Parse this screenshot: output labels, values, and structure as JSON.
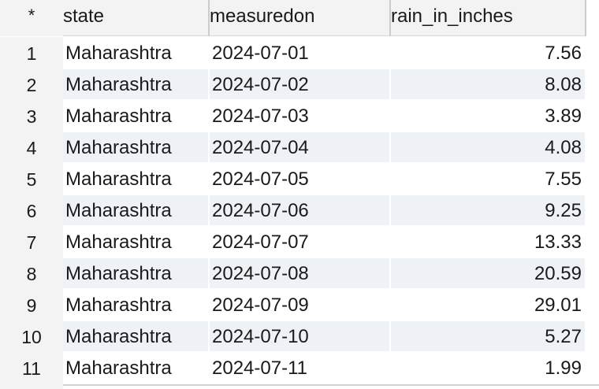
{
  "table": {
    "corner_label": "*",
    "columns": [
      "state",
      "measuredon",
      "rain_in_inches"
    ],
    "rows": [
      {
        "num": "1",
        "state": "Maharashtra",
        "measuredon": "2024-07-01",
        "rain_in_inches": "7.56"
      },
      {
        "num": "2",
        "state": "Maharashtra",
        "measuredon": "2024-07-02",
        "rain_in_inches": "8.08"
      },
      {
        "num": "3",
        "state": "Maharashtra",
        "measuredon": "2024-07-03",
        "rain_in_inches": "3.89"
      },
      {
        "num": "4",
        "state": "Maharashtra",
        "measuredon": "2024-07-04",
        "rain_in_inches": "4.08"
      },
      {
        "num": "5",
        "state": "Maharashtra",
        "measuredon": "2024-07-05",
        "rain_in_inches": "7.55"
      },
      {
        "num": "6",
        "state": "Maharashtra",
        "measuredon": "2024-07-06",
        "rain_in_inches": "9.25"
      },
      {
        "num": "7",
        "state": "Maharashtra",
        "measuredon": "2024-07-07",
        "rain_in_inches": "13.33"
      },
      {
        "num": "8",
        "state": "Maharashtra",
        "measuredon": "2024-07-08",
        "rain_in_inches": "20.59"
      },
      {
        "num": "9",
        "state": "Maharashtra",
        "measuredon": "2024-07-09",
        "rain_in_inches": "29.01"
      },
      {
        "num": "10",
        "state": "Maharashtra",
        "measuredon": "2024-07-10",
        "rain_in_inches": "5.27"
      },
      {
        "num": "11",
        "state": "Maharashtra",
        "measuredon": "2024-07-11",
        "rain_in_inches": "1.99"
      }
    ]
  }
}
